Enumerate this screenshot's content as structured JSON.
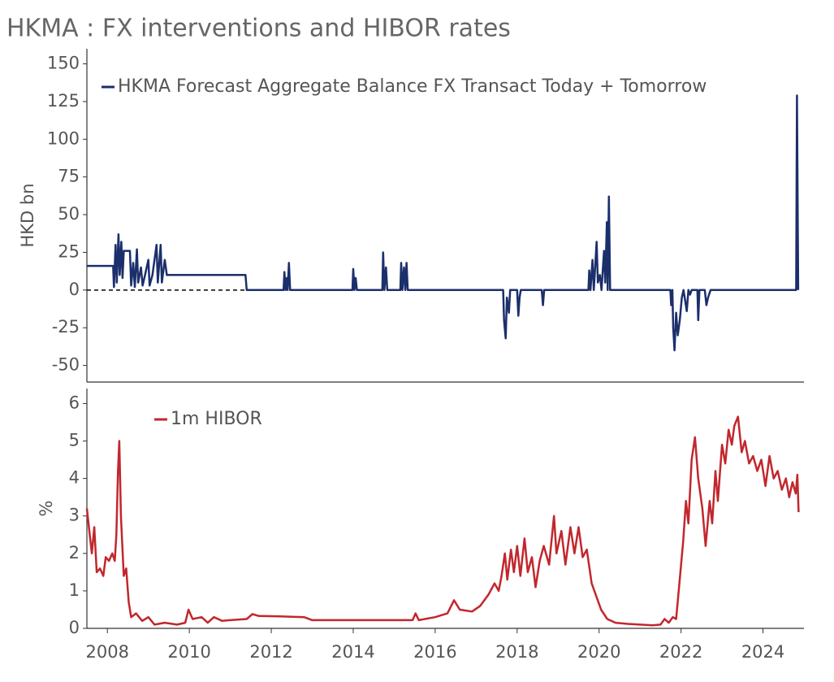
{
  "title": "HKMA : FX interventions and HIBOR rates",
  "chart_data": [
    {
      "type": "line",
      "ylabel": "HKD bn",
      "legend": "upper left",
      "xlim": [
        2007.5,
        2025
      ],
      "ylim": [
        -61,
        160
      ],
      "yticks": [
        -50,
        -25,
        0,
        25,
        50,
        75,
        100,
        125,
        150
      ],
      "hline": {
        "value": 0,
        "x": [
          2007.5,
          2011.37
        ]
      },
      "series": [
        {
          "name": "HKMA Forecast Aggregate Balance FX Transact Today + Tomorrow",
          "color": "#1b2f6b",
          "x": [
            2007.5,
            2008.14,
            2008.16,
            2008.2,
            2008.23,
            2008.27,
            2008.3,
            2008.34,
            2008.37,
            2008.4,
            2008.55,
            2008.58,
            2008.63,
            2008.67,
            2008.72,
            2008.75,
            2008.82,
            2008.86,
            2008.92,
            2009.0,
            2009.03,
            2009.1,
            2009.2,
            2009.23,
            2009.3,
            2009.33,
            2009.4,
            2009.45,
            2011.37,
            2011.4,
            2012.3,
            2012.32,
            2012.35,
            2012.38,
            2012.4,
            2012.43,
            2012.46,
            2013.98,
            2014.0,
            2014.03,
            2014.06,
            2014.09,
            2014.71,
            2014.73,
            2014.76,
            2014.8,
            2014.83,
            2015.15,
            2015.17,
            2015.2,
            2015.24,
            2015.27,
            2015.3,
            2015.33,
            2017.66,
            2017.68,
            2017.72,
            2017.75,
            2017.8,
            2017.83,
            2018.0,
            2018.03,
            2018.06,
            2018.09,
            2018.6,
            2018.63,
            2018.66,
            2019.74,
            2019.76,
            2019.79,
            2019.84,
            2019.87,
            2019.94,
            2019.97,
            2020.02,
            2020.06,
            2020.12,
            2020.15,
            2020.19,
            2020.21,
            2020.24,
            2020.27,
            2021.74,
            2021.76,
            2021.79,
            2021.81,
            2021.84,
            2021.88,
            2021.92,
            2021.97,
            2022.02,
            2022.06,
            2022.14,
            2022.18,
            2022.22,
            2022.26,
            2022.4,
            2022.42,
            2022.45,
            2022.58,
            2022.62,
            2022.66,
            2022.72,
            2024.81,
            2024.83,
            2024.86
          ],
          "values": [
            16,
            16,
            2,
            30,
            5,
            37,
            10,
            32,
            8,
            26,
            26,
            3,
            18,
            2,
            27,
            5,
            15,
            3,
            10,
            20,
            3,
            10,
            30,
            5,
            30,
            5,
            20,
            10,
            10,
            0,
            0,
            12,
            0,
            8,
            0,
            18,
            0,
            0,
            14,
            0,
            8,
            0,
            0,
            25,
            0,
            15,
            0,
            0,
            18,
            0,
            15,
            0,
            18,
            0,
            0,
            -20,
            -32,
            -5,
            -15,
            0,
            0,
            -17,
            -5,
            0,
            0,
            -10,
            0,
            0,
            13,
            0,
            20,
            0,
            32,
            5,
            10,
            0,
            26,
            5,
            45,
            0,
            62,
            0,
            0,
            -10,
            0,
            -25,
            -40,
            -15,
            -30,
            -20,
            -5,
            0,
            -14,
            0,
            -3,
            0,
            0,
            -20,
            0,
            0,
            -10,
            -5,
            0,
            0,
            129,
            0
          ]
        }
      ]
    },
    {
      "type": "line",
      "ylabel": "%",
      "legend": "upper left",
      "xlim": [
        2007.5,
        2025
      ],
      "ylim": [
        0,
        6.4
      ],
      "yticks": [
        0,
        1,
        2,
        3,
        4,
        5,
        6
      ],
      "xticks": [
        2008,
        2010,
        2012,
        2014,
        2016,
        2018,
        2020,
        2022,
        2024
      ],
      "series": [
        {
          "name": "1m HIBOR",
          "color": "#c1272d",
          "x": [
            2007.5,
            2007.56,
            2007.62,
            2007.68,
            2007.74,
            2007.82,
            2007.9,
            2007.96,
            2008.04,
            2008.12,
            2008.18,
            2008.22,
            2008.26,
            2008.29,
            2008.33,
            2008.4,
            2008.46,
            2008.52,
            2008.58,
            2008.7,
            2008.85,
            2009.0,
            2009.15,
            2009.4,
            2009.7,
            2009.9,
            2009.98,
            2010.08,
            2010.3,
            2010.45,
            2010.6,
            2010.8,
            2011.0,
            2011.4,
            2011.54,
            2011.7,
            2012.2,
            2012.8,
            2013.0,
            2014.0,
            2015.0,
            2015.45,
            2015.52,
            2015.6,
            2016.0,
            2016.3,
            2016.46,
            2016.6,
            2016.9,
            2017.1,
            2017.3,
            2017.45,
            2017.55,
            2017.62,
            2017.7,
            2017.76,
            2017.85,
            2017.92,
            2018.0,
            2018.08,
            2018.18,
            2018.26,
            2018.36,
            2018.45,
            2018.55,
            2018.65,
            2018.78,
            2018.9,
            2018.96,
            2019.08,
            2019.18,
            2019.3,
            2019.4,
            2019.5,
            2019.6,
            2019.7,
            2019.82,
            2019.95,
            2020.05,
            2020.2,
            2020.4,
            2020.7,
            2021.0,
            2021.3,
            2021.5,
            2021.6,
            2021.7,
            2021.8,
            2021.88,
            2021.96,
            2022.05,
            2022.12,
            2022.18,
            2022.26,
            2022.34,
            2022.42,
            2022.52,
            2022.6,
            2022.7,
            2022.76,
            2022.84,
            2022.9,
            2023.0,
            2023.08,
            2023.16,
            2023.24,
            2023.3,
            2023.39,
            2023.48,
            2023.56,
            2023.66,
            2023.76,
            2023.86,
            2023.96,
            2024.06,
            2024.16,
            2024.26,
            2024.36,
            2024.46,
            2024.56,
            2024.64,
            2024.72,
            2024.8,
            2024.84,
            2024.87
          ],
          "values": [
            3.2,
            2.6,
            2,
            2.7,
            1.5,
            1.6,
            1.4,
            1.9,
            1.8,
            2,
            1.8,
            2.5,
            4.2,
            5,
            3,
            1.4,
            1.6,
            0.7,
            0.3,
            0.4,
            0.2,
            0.3,
            0.1,
            0.15,
            0.1,
            0.15,
            0.5,
            0.25,
            0.3,
            0.15,
            0.3,
            0.2,
            0.22,
            0.25,
            0.38,
            0.33,
            0.32,
            0.3,
            0.22,
            0.22,
            0.22,
            0.22,
            0.4,
            0.22,
            0.3,
            0.4,
            0.75,
            0.5,
            0.45,
            0.6,
            0.9,
            1.2,
            1,
            1.4,
            2,
            1.3,
            2.1,
            1.5,
            2.2,
            1.4,
            2.4,
            1.5,
            1.9,
            1.1,
            1.8,
            2.2,
            1.7,
            3,
            2,
            2.6,
            1.7,
            2.7,
            2,
            2.7,
            1.9,
            2.1,
            1.2,
            0.8,
            0.5,
            0.25,
            0.15,
            0.12,
            0.1,
            0.08,
            0.1,
            0.25,
            0.15,
            0.3,
            0.25,
            1.2,
            2.3,
            3.4,
            2.8,
            4.5,
            5.1,
            4,
            3.2,
            2.2,
            3.4,
            2.8,
            4.2,
            3.4,
            4.9,
            4.4,
            5.3,
            4.9,
            5.4,
            5.65,
            4.7,
            5,
            4.4,
            4.6,
            4.2,
            4.5,
            3.8,
            4.6,
            4,
            4.2,
            3.7,
            4,
            3.5,
            3.9,
            3.6,
            4.1,
            3.1
          ]
        }
      ]
    }
  ]
}
